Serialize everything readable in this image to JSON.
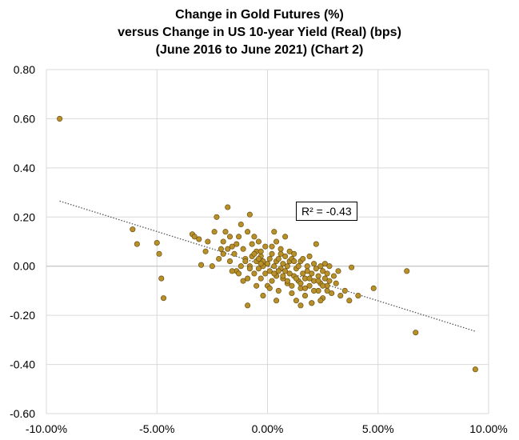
{
  "chart_data": {
    "type": "scatter",
    "title_lines": [
      "Change in Gold Futures (%)",
      "versus Change in US 10-year Yield (Real) (bps)",
      "(June 2016 to June 2021) (Chart 2)"
    ],
    "xlim": [
      -0.1,
      0.1
    ],
    "ylim": [
      -0.6,
      0.8
    ],
    "x_ticks": [
      "-10.00%",
      "-5.00%",
      "0.00%",
      "5.00%",
      "10.00%"
    ],
    "x_tick_values": [
      -0.1,
      -0.05,
      0.0,
      0.05,
      0.1
    ],
    "y_ticks": [
      "0.80",
      "0.60",
      "0.40",
      "0.20",
      "0.00",
      "-0.20",
      "-0.40",
      "-0.60"
    ],
    "y_tick_values": [
      0.8,
      0.6,
      0.4,
      0.2,
      0.0,
      -0.2,
      -0.4,
      -0.6
    ],
    "annotation": "R² = -0.43",
    "trendline": {
      "x": [
        -0.094,
        0.094
      ],
      "y": [
        0.265,
        -0.265
      ]
    },
    "colors": {
      "point_fill": "#B8902A",
      "point_stroke": "#6B5012",
      "trend": "#555555",
      "grid": "#D9D9D9"
    },
    "points": [
      [
        -0.094,
        0.6
      ],
      [
        0.094,
        -0.42
      ],
      [
        0.067,
        -0.27
      ],
      [
        0.063,
        -0.02
      ],
      [
        0.048,
        -0.09
      ],
      [
        0.041,
        -0.12
      ],
      [
        0.038,
        -0.005
      ],
      [
        0.037,
        -0.14
      ],
      [
        0.035,
        -0.1
      ],
      [
        -0.061,
        0.15
      ],
      [
        -0.059,
        0.09
      ],
      [
        -0.05,
        0.095
      ],
      [
        -0.049,
        0.05
      ],
      [
        -0.048,
        -0.05
      ],
      [
        -0.047,
        -0.13
      ],
      [
        -0.034,
        0.13
      ],
      [
        -0.033,
        0.12
      ],
      [
        -0.031,
        0.11
      ],
      [
        -0.03,
        0.005
      ],
      [
        -0.028,
        0.06
      ],
      [
        -0.027,
        0.1
      ],
      [
        -0.025,
        0.0
      ],
      [
        -0.024,
        0.14
      ],
      [
        -0.023,
        0.2
      ],
      [
        -0.022,
        0.03
      ],
      [
        -0.021,
        0.07
      ],
      [
        -0.02,
        0.1
      ],
      [
        -0.019,
        0.14
      ],
      [
        -0.018,
        0.24
      ],
      [
        -0.017,
        0.02
      ],
      [
        -0.016,
        0.08
      ],
      [
        -0.015,
        0.05
      ],
      [
        -0.014,
        -0.02
      ],
      [
        -0.013,
        0.12
      ],
      [
        -0.012,
        0.17
      ],
      [
        -0.011,
        0.07
      ],
      [
        -0.01,
        0.03
      ],
      [
        -0.009,
        0.14
      ],
      [
        -0.008,
        0.21
      ],
      [
        -0.008,
        0.0
      ],
      [
        -0.007,
        0.09
      ],
      [
        -0.007,
        0.04
      ],
      [
        -0.006,
        -0.03
      ],
      [
        -0.006,
        0.12
      ],
      [
        -0.005,
        0.02
      ],
      [
        -0.005,
        0.06
      ],
      [
        -0.004,
        -0.01
      ],
      [
        -0.004,
        0.1
      ],
      [
        -0.003,
        0.04
      ],
      [
        -0.003,
        -0.05
      ],
      [
        -0.002,
        0.0
      ],
      [
        -0.002,
        0.02
      ],
      [
        -0.001,
        0.08
      ],
      [
        -0.001,
        -0.03
      ],
      [
        0.0,
        0.01
      ],
      [
        0.0,
        -0.08
      ],
      [
        0.001,
        0.03
      ],
      [
        0.001,
        -0.02
      ],
      [
        0.002,
        0.05
      ],
      [
        0.002,
        -0.06
      ],
      [
        0.003,
        0.0
      ],
      [
        0.003,
        0.14
      ],
      [
        0.004,
        -0.04
      ],
      [
        0.004,
        0.02
      ],
      [
        0.005,
        -0.1
      ],
      [
        0.005,
        0.03
      ],
      [
        0.006,
        -0.01
      ],
      [
        0.006,
        0.07
      ],
      [
        0.007,
        -0.05
      ],
      [
        0.007,
        0.01
      ],
      [
        0.008,
        -0.02
      ],
      [
        0.008,
        0.04
      ],
      [
        0.009,
        -0.07
      ],
      [
        0.009,
        0.0
      ],
      [
        0.01,
        0.02
      ],
      [
        0.01,
        -0.03
      ],
      [
        0.011,
        -0.11
      ],
      [
        0.011,
        0.03
      ],
      [
        0.012,
        -0.04
      ],
      [
        0.012,
        0.05
      ],
      [
        0.013,
        -0.01
      ],
      [
        0.013,
        -0.14
      ],
      [
        0.014,
        0.0
      ],
      [
        0.014,
        -0.06
      ],
      [
        0.015,
        0.02
      ],
      [
        0.015,
        -0.09
      ],
      [
        0.016,
        -0.03
      ],
      [
        0.016,
        0.03
      ],
      [
        0.017,
        -0.05
      ],
      [
        0.017,
        -0.12
      ],
      [
        0.018,
        0.0
      ],
      [
        0.018,
        -0.02
      ],
      [
        0.019,
        -0.08
      ],
      [
        0.019,
        0.04
      ],
      [
        0.02,
        -0.03
      ],
      [
        0.02,
        -0.15
      ],
      [
        0.021,
        0.01
      ],
      [
        0.021,
        -0.06
      ],
      [
        0.022,
        -0.01
      ],
      [
        0.022,
        0.09
      ],
      [
        0.023,
        -0.04
      ],
      [
        0.023,
        -0.1
      ],
      [
        0.024,
        0.0
      ],
      [
        0.024,
        -0.07
      ],
      [
        0.025,
        -0.02
      ],
      [
        0.025,
        -0.13
      ],
      [
        0.026,
        -0.05
      ],
      [
        0.026,
        0.01
      ],
      [
        0.027,
        -0.08
      ],
      [
        0.027,
        -0.03
      ],
      [
        0.028,
        -0.06
      ],
      [
        0.028,
        0.0
      ],
      [
        0.029,
        -0.11
      ],
      [
        0.03,
        -0.04
      ],
      [
        0.031,
        -0.07
      ],
      [
        0.032,
        -0.02
      ],
      [
        0.033,
        -0.12
      ],
      [
        -0.009,
        -0.16
      ],
      [
        -0.002,
        -0.12
      ],
      [
        0.004,
        -0.14
      ],
      [
        0.015,
        -0.16
      ],
      [
        0.02,
        -0.15
      ],
      [
        0.024,
        -0.14
      ],
      [
        -0.011,
        -0.06
      ],
      [
        -0.013,
        -0.03
      ],
      [
        -0.016,
        -0.02
      ],
      [
        -0.009,
        -0.05
      ],
      [
        -0.005,
        -0.08
      ],
      [
        0.001,
        -0.09
      ],
      [
        -0.012,
        0.0
      ],
      [
        -0.01,
        0.02
      ],
      [
        -0.008,
        -0.01
      ],
      [
        -0.006,
        0.05
      ],
      [
        -0.004,
        0.03
      ],
      [
        -0.003,
        0.06
      ],
      [
        0.002,
        0.08
      ],
      [
        0.004,
        0.1
      ],
      [
        0.006,
        0.05
      ],
      [
        0.008,
        0.12
      ],
      [
        0.01,
        0.06
      ],
      [
        0.012,
        0.02
      ],
      [
        -0.018,
        0.07
      ],
      [
        -0.02,
        0.05
      ],
      [
        -0.017,
        0.12
      ],
      [
        -0.014,
        0.09
      ],
      [
        -0.003,
        0.01
      ],
      [
        0.003,
        -0.03
      ],
      [
        0.005,
        -0.02
      ],
      [
        0.007,
        -0.04
      ],
      [
        0.009,
        -0.06
      ],
      [
        0.011,
        -0.08
      ],
      [
        0.013,
        -0.05
      ],
      [
        0.015,
        -0.07
      ],
      [
        0.017,
        -0.09
      ],
      [
        0.019,
        -0.05
      ],
      [
        0.021,
        -0.1
      ],
      [
        0.023,
        -0.06
      ],
      [
        0.025,
        -0.08
      ],
      [
        0.027,
        -0.1
      ]
    ]
  }
}
